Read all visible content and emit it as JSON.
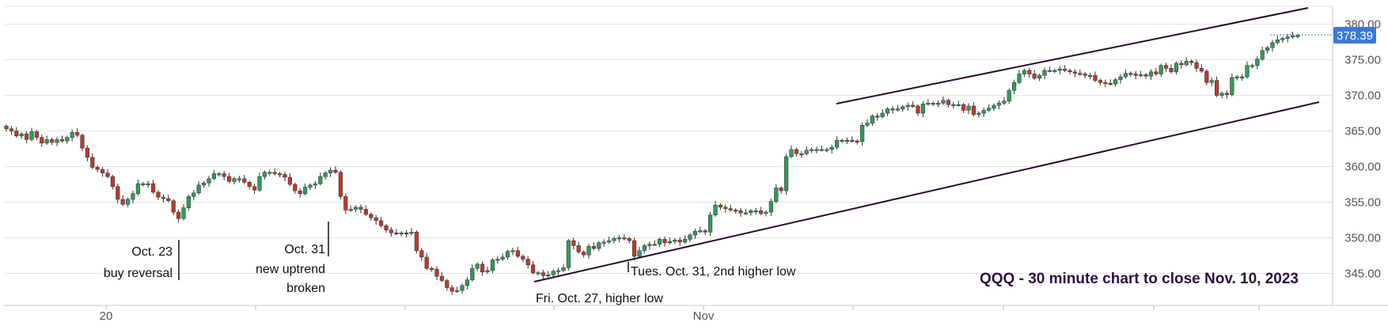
{
  "chart_data": {
    "type": "candlestick",
    "title": "QQQ - 30 minute chart to close Nov. 10, 2023",
    "y_range": [
      340.5,
      382.5
    ],
    "y_ticks": [
      "380.00",
      "375.00",
      "370.00",
      "365.00",
      "360.00",
      "355.00",
      "350.00",
      "345.00"
    ],
    "x_labels": [
      "20",
      "Nov"
    ],
    "last_price": "378.39",
    "colors": {
      "up": "#2e9e5b",
      "down": "#c0392b",
      "wick": "#333333",
      "trendline": "#2a0b2e",
      "badge": "#3a78d8",
      "grid": "#e3e3e3"
    },
    "closes": [
      365.3,
      365.0,
      364.3,
      364.6,
      363.8,
      364.9,
      364.1,
      363.3,
      363.8,
      363.4,
      363.8,
      363.6,
      364.1,
      364.8,
      364.4,
      362.6,
      361.3,
      359.9,
      359.6,
      359.1,
      358.6,
      357.2,
      355.4,
      354.7,
      355.4,
      356.2,
      357.6,
      357.6,
      357.6,
      356.4,
      355.7,
      355.5,
      355.2,
      353.6,
      352.7,
      354.2,
      355.8,
      356.3,
      357.4,
      357.7,
      358.3,
      359.0,
      359.0,
      358.6,
      357.9,
      358.3,
      358.3,
      357.8,
      357.2,
      356.7,
      358.6,
      359.2,
      359.2,
      359.0,
      358.9,
      358.5,
      357.5,
      356.6,
      356.2,
      357.1,
      357.4,
      357.6,
      358.6,
      359.1,
      359.5,
      359.2,
      355.8,
      353.9,
      354.0,
      354.3,
      354.0,
      353.3,
      352.8,
      352.4,
      351.7,
      351.1,
      350.7,
      350.6,
      350.7,
      350.6,
      350.8,
      348.2,
      347.3,
      345.7,
      345.6,
      344.6,
      344.0,
      343.0,
      342.5,
      342.6,
      343.3,
      344.1,
      345.7,
      346.3,
      345.2,
      345.4,
      346.9,
      347.0,
      347.3,
      348.1,
      348.2,
      347.4,
      347.0,
      346.2,
      345.1,
      345.1,
      344.7,
      344.8,
      345.3,
      345.4,
      345.8,
      349.6,
      348.9,
      348.0,
      347.6,
      348.8,
      348.5,
      349.3,
      349.4,
      349.6,
      349.9,
      350.0,
      349.9,
      349.6,
      347.4,
      348.2,
      348.9,
      349.1,
      349.1,
      349.8,
      349.3,
      349.5,
      349.7,
      349.4,
      349.8,
      350.4,
      350.9,
      351.0,
      350.8,
      353.2,
      354.6,
      354.3,
      354.1,
      353.9,
      353.8,
      353.5,
      353.5,
      353.8,
      353.8,
      353.4,
      353.6,
      355.1,
      357.0,
      356.6,
      361.4,
      362.4,
      361.8,
      361.8,
      362.3,
      362.4,
      362.4,
      362.4,
      362.4,
      362.7,
      363.7,
      363.7,
      363.7,
      363.6,
      363.5,
      365.8,
      366.1,
      367.1,
      367.0,
      367.5,
      368.1,
      368.0,
      368.1,
      368.4,
      368.6,
      368.5,
      367.5,
      368.8,
      368.9,
      368.9,
      368.9,
      369.3,
      368.7,
      368.7,
      368.7,
      367.9,
      368.5,
      367.3,
      367.5,
      367.9,
      368.2,
      368.6,
      368.9,
      369.2,
      370.7,
      371.8,
      373.0,
      373.5,
      373.0,
      372.4,
      372.8,
      373.5,
      373.5,
      373.5,
      373.7,
      373.5,
      373.3,
      373.1,
      373.0,
      372.8,
      372.8,
      372.1,
      371.8,
      371.7,
      371.6,
      372.2,
      372.6,
      373.1,
      373.0,
      372.8,
      372.9,
      372.7,
      373.3,
      373.0,
      374.2,
      373.8,
      373.3,
      374.5,
      374.3,
      374.8,
      374.6,
      373.8,
      373.4,
      371.8,
      372.1,
      370.0,
      370.3,
      370.1,
      372.5,
      372.6,
      372.6,
      374.2,
      374.2,
      375.1,
      376.3,
      376.7,
      377.4,
      377.8,
      378.0,
      378.2,
      378.4,
      378.4
    ],
    "annotations": [
      {
        "lines": [
          "Oct. 23",
          "buy reversal"
        ]
      },
      {
        "lines": [
          "Oct. 31",
          "new uptrend",
          "broken"
        ]
      },
      {
        "lines": [
          "Tues. Oct. 31, 2nd higher low"
        ]
      },
      {
        "lines": [
          "Fri. Oct. 27, higher low"
        ]
      }
    ]
  }
}
